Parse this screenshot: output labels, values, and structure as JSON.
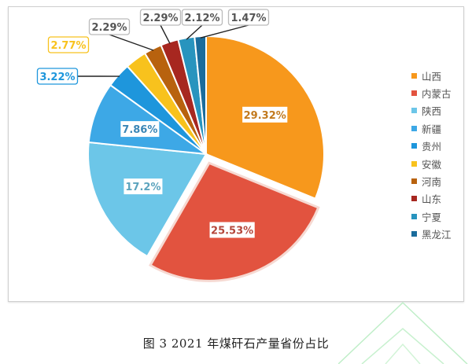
{
  "chart_data": {
    "type": "pie",
    "title": "图 3   2021 年煤矸石产量省份占比",
    "categories": [
      "山西",
      "内蒙古",
      "陕西",
      "新疆",
      "贵州",
      "安徽",
      "河南",
      "山东",
      "宁夏",
      "黑龙江"
    ],
    "values": [
      29.32,
      25.53,
      17.2,
      7.86,
      3.22,
      2.77,
      2.29,
      2.29,
      2.12,
      1.47
    ],
    "labels": [
      "29.32%",
      "25.53%",
      "17.2%",
      "7.86%",
      "3.22%",
      "2.77%",
      "2.29%",
      "2.29%",
      "2.12%",
      "1.47%"
    ],
    "colors": [
      "#F7981C",
      "#E2533F",
      "#6CC6E8",
      "#3DA8E6",
      "#1E96DC",
      "#F8C21D",
      "#B8620E",
      "#A72720",
      "#2894BE",
      "#1A6C9C"
    ],
    "exploded": [
      "内蒙古"
    ],
    "start_angle_deg": -90,
    "direction": "clockwise",
    "legend_position": "right",
    "unit": "%"
  },
  "legend": {
    "items": [
      {
        "label": "山西",
        "color": "#F7981C"
      },
      {
        "label": "内蒙古",
        "color": "#E2533F"
      },
      {
        "label": "陕西",
        "color": "#6CC6E8"
      },
      {
        "label": "新疆",
        "color": "#3DA8E6"
      },
      {
        "label": "贵州",
        "color": "#1E96DC"
      },
      {
        "label": "安徽",
        "color": "#F8C21D"
      },
      {
        "label": "河南",
        "color": "#B8620E"
      },
      {
        "label": "山东",
        "color": "#A72720"
      },
      {
        "label": "宁夏",
        "color": "#2894BE"
      },
      {
        "label": "黑龙江",
        "color": "#1A6C9C"
      }
    ]
  },
  "caption": {
    "text": "图 3   2021 年煤矸石产量省份占比"
  },
  "colors": {
    "label_text_dark": "#555555",
    "frame_border": "#cfcfcf",
    "leader_line": "#222222"
  }
}
